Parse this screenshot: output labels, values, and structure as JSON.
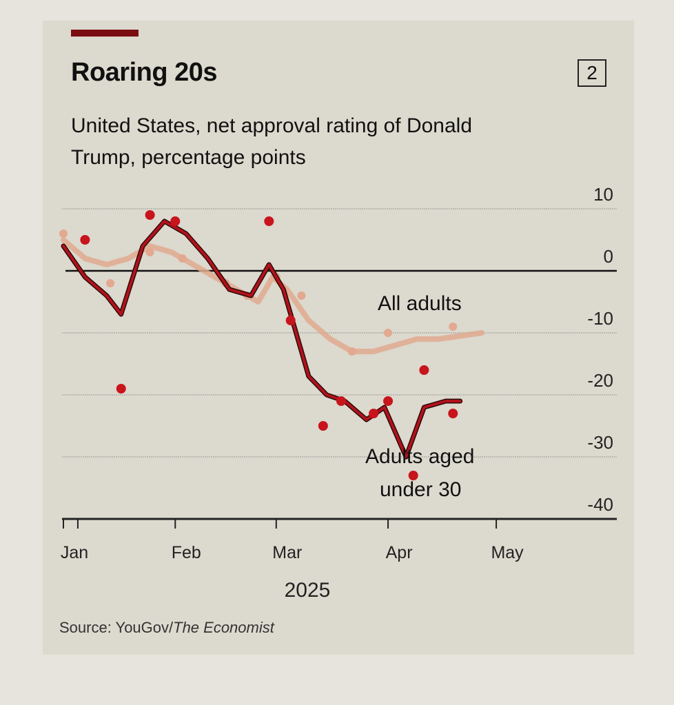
{
  "header": {
    "title": "Roaring 20s",
    "badge": "2",
    "subtitle": "United States, net approval rating of Donald Trump, percentage points"
  },
  "source": {
    "prefix": "Source: YouGov/",
    "italic": "The Economist"
  },
  "chart_data": {
    "type": "line",
    "title": "Roaring 20s",
    "subtitle": "United States, net approval rating of Donald Trump, percentage points",
    "xlabel": "2025",
    "ylabel": "",
    "ylim": [
      -40,
      10
    ],
    "yticks": [
      10,
      0,
      -10,
      -20,
      -30,
      -40
    ],
    "ytick_labels": [
      "10",
      "0",
      "-10",
      "-20",
      "-30",
      "-40"
    ],
    "x_unit": "day of 2025 (Jan 1 = 0)",
    "xlim": [
      0,
      141
    ],
    "xticks": [
      {
        "label": "Jan",
        "x": 0
      },
      {
        "label": "",
        "x": 4
      },
      {
        "label": "Feb",
        "x": 31
      },
      {
        "label": "Mar",
        "x": 59
      },
      {
        "label": "Apr",
        "x": 90
      },
      {
        "label": "May",
        "x": 120
      }
    ],
    "grid": true,
    "series": [
      {
        "name": "All adults",
        "color": "#e0a98f",
        "line": [
          [
            0,
            5
          ],
          [
            6,
            2
          ],
          [
            12,
            1
          ],
          [
            18,
            2
          ],
          [
            24,
            4
          ],
          [
            30,
            3
          ],
          [
            36,
            1
          ],
          [
            42,
            -1
          ],
          [
            48,
            -3
          ],
          [
            54,
            -5
          ],
          [
            58,
            -1
          ],
          [
            62,
            -3
          ],
          [
            68,
            -8
          ],
          [
            74,
            -11
          ],
          [
            80,
            -13
          ],
          [
            86,
            -13
          ],
          [
            92,
            -12
          ],
          [
            98,
            -11
          ],
          [
            104,
            -11
          ],
          [
            110,
            -10.5
          ],
          [
            116,
            -10
          ]
        ],
        "points": [
          [
            0,
            6
          ],
          [
            13,
            -2
          ],
          [
            24,
            3
          ],
          [
            33,
            2
          ],
          [
            45,
            -2
          ],
          [
            51,
            -4
          ],
          [
            59,
            -1
          ],
          [
            66,
            -4
          ],
          [
            80,
            -13
          ],
          [
            90,
            -10
          ],
          [
            108,
            -9
          ]
        ]
      },
      {
        "name": "Adults aged under 30",
        "color": "#b3121b",
        "line": [
          [
            0,
            4
          ],
          [
            6,
            -1
          ],
          [
            12,
            -4
          ],
          [
            16,
            -7
          ],
          [
            22,
            4
          ],
          [
            28,
            8
          ],
          [
            34,
            6
          ],
          [
            40,
            2
          ],
          [
            46,
            -3
          ],
          [
            52,
            -4
          ],
          [
            57,
            1
          ],
          [
            61,
            -3
          ],
          [
            64,
            -9
          ],
          [
            68,
            -17
          ],
          [
            73,
            -20
          ],
          [
            78,
            -21
          ],
          [
            84,
            -24
          ],
          [
            89,
            -22
          ],
          [
            95,
            -30
          ],
          [
            100,
            -22
          ],
          [
            106,
            -21
          ],
          [
            110,
            -21
          ]
        ],
        "points": [
          [
            6,
            5
          ],
          [
            16,
            -19
          ],
          [
            24,
            9
          ],
          [
            31,
            8
          ],
          [
            57,
            8
          ],
          [
            63,
            -8
          ],
          [
            72,
            -25
          ],
          [
            77,
            -21
          ],
          [
            86,
            -23
          ],
          [
            90,
            -21
          ],
          [
            97,
            -33
          ],
          [
            100,
            -16
          ],
          [
            108,
            -23
          ]
        ]
      }
    ],
    "annotations": [
      "All adults",
      "Adults aged",
      "under 30"
    ],
    "legend": "inline labels"
  }
}
